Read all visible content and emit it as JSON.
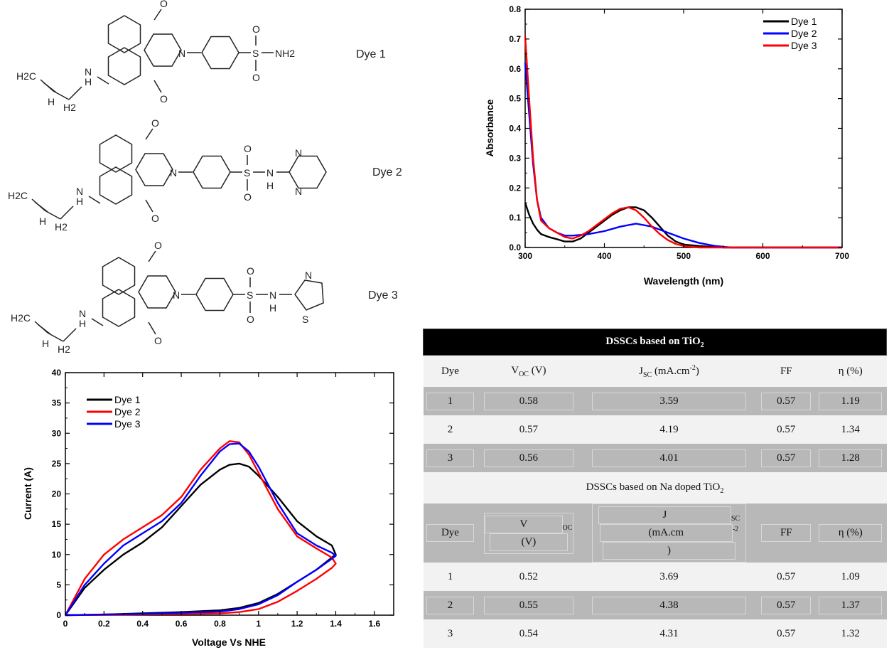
{
  "structures": {
    "labels": [
      "Dye 1",
      "Dye 2",
      "Dye 3"
    ],
    "groups": {
      "h2c": "H2C",
      "h": "H",
      "h2": "H2",
      "n": "N",
      "nh_n": "N",
      "nh_h": "H",
      "o": "O",
      "s": "S",
      "nh2": "NH2",
      "h_sub": "H",
      "n_ring": "N",
      "s_ring": "S"
    }
  },
  "absorbance_chart": {
    "chart_data": {
      "type": "line",
      "xlabel": "Wavelength (nm)",
      "ylabel": "Absorbance",
      "xlim": [
        300,
        700
      ],
      "ylim": [
        0.0,
        0.8
      ],
      "xticks": [
        300,
        400,
        500,
        600,
        700
      ],
      "yticks": [
        0.0,
        0.1,
        0.2,
        0.3,
        0.4,
        0.5,
        0.6,
        0.7,
        0.8
      ],
      "legend_position": "top-right",
      "series": [
        {
          "name": "Dye 1",
          "color": "#000000",
          "x": [
            300,
            305,
            310,
            315,
            320,
            330,
            340,
            350,
            360,
            370,
            380,
            390,
            400,
            410,
            420,
            430,
            440,
            450,
            460,
            470,
            480,
            490,
            500,
            520,
            550,
            600,
            650,
            700
          ],
          "y": [
            0.15,
            0.11,
            0.08,
            0.06,
            0.045,
            0.035,
            0.028,
            0.02,
            0.02,
            0.03,
            0.05,
            0.07,
            0.09,
            0.11,
            0.125,
            0.135,
            0.135,
            0.125,
            0.1,
            0.07,
            0.04,
            0.02,
            0.01,
            0.005,
            0.0,
            0.0,
            0.0,
            0.0
          ]
        },
        {
          "name": "Dye 2",
          "color": "#0000ff",
          "x": [
            300,
            305,
            310,
            315,
            320,
            330,
            340,
            350,
            360,
            380,
            400,
            420,
            440,
            460,
            480,
            500,
            520,
            540,
            560,
            600,
            650,
            700
          ],
          "y": [
            0.62,
            0.45,
            0.28,
            0.16,
            0.1,
            0.065,
            0.05,
            0.04,
            0.04,
            0.045,
            0.055,
            0.07,
            0.08,
            0.07,
            0.05,
            0.03,
            0.015,
            0.005,
            0.0,
            0.0,
            0.0,
            0.0
          ]
        },
        {
          "name": "Dye 3",
          "color": "#ff0000",
          "x": [
            300,
            305,
            310,
            315,
            320,
            330,
            340,
            350,
            360,
            370,
            380,
            390,
            400,
            410,
            420,
            430,
            440,
            450,
            460,
            470,
            480,
            490,
            500,
            520,
            550,
            600,
            650,
            700
          ],
          "y": [
            0.71,
            0.5,
            0.3,
            0.16,
            0.09,
            0.065,
            0.05,
            0.035,
            0.03,
            0.04,
            0.055,
            0.075,
            0.095,
            0.115,
            0.13,
            0.135,
            0.125,
            0.1,
            0.07,
            0.045,
            0.025,
            0.012,
            0.005,
            0.0,
            0.0,
            0.0,
            0.0,
            0.0
          ]
        }
      ]
    }
  },
  "cv_chart": {
    "chart_data": {
      "type": "line",
      "xlabel": "Voltage Vs NHE",
      "ylabel": "Current (A)",
      "xlim": [
        0.0,
        1.7
      ],
      "ylim": [
        0,
        40
      ],
      "xticks": [
        0.0,
        0.2,
        0.4,
        0.6,
        0.8,
        1.0,
        1.2,
        1.4,
        1.6
      ],
      "yticks": [
        0,
        5,
        10,
        15,
        20,
        25,
        30,
        35,
        40
      ],
      "legend_position": "top-left",
      "series": [
        {
          "name": "Dye 1",
          "color": "#000000",
          "x": [
            0.0,
            0.1,
            0.2,
            0.3,
            0.4,
            0.5,
            0.6,
            0.7,
            0.8,
            0.85,
            0.9,
            0.95,
            1.0,
            1.1,
            1.2,
            1.3,
            1.38,
            1.4,
            1.38,
            1.3,
            1.2,
            1.1,
            1.0,
            0.9,
            0.8,
            0.6,
            0.4,
            0.2,
            0.0
          ],
          "y": [
            0.0,
            4.5,
            7.5,
            10.0,
            12.0,
            14.5,
            18.0,
            21.5,
            24.0,
            24.8,
            25.0,
            24.5,
            23.0,
            19.5,
            15.5,
            13.0,
            11.5,
            10.0,
            9.5,
            7.5,
            5.5,
            3.5,
            2.0,
            1.2,
            0.8,
            0.5,
            0.3,
            0.1,
            0.0
          ]
        },
        {
          "name": "Dye 2",
          "color": "#ff0000",
          "x": [
            0.0,
            0.1,
            0.2,
            0.3,
            0.4,
            0.5,
            0.6,
            0.7,
            0.8,
            0.85,
            0.9,
            0.95,
            1.0,
            1.1,
            1.2,
            1.3,
            1.38,
            1.4,
            1.38,
            1.3,
            1.2,
            1.1,
            1.0,
            0.9,
            0.8,
            0.6,
            0.4,
            0.2,
            0.0
          ],
          "y": [
            0.0,
            6.0,
            10.0,
            12.5,
            14.5,
            16.5,
            19.5,
            24.0,
            27.5,
            28.7,
            28.5,
            26.5,
            23.5,
            17.5,
            13.0,
            11.0,
            9.5,
            8.5,
            7.8,
            6.0,
            4.0,
            2.2,
            1.0,
            0.5,
            0.3,
            0.2,
            0.1,
            0.05,
            0.0
          ]
        },
        {
          "name": "Dye 3",
          "color": "#0000ff",
          "x": [
            0.0,
            0.1,
            0.2,
            0.3,
            0.4,
            0.5,
            0.6,
            0.7,
            0.8,
            0.85,
            0.9,
            0.95,
            1.0,
            1.1,
            1.2,
            1.3,
            1.38,
            1.4,
            1.38,
            1.3,
            1.2,
            1.1,
            1.0,
            0.9,
            0.8,
            0.6,
            0.4,
            0.2,
            0.0
          ],
          "y": [
            0.0,
            5.0,
            8.5,
            11.5,
            13.5,
            15.5,
            18.5,
            23.0,
            27.0,
            28.2,
            28.3,
            27.0,
            24.5,
            18.5,
            13.5,
            11.5,
            10.3,
            9.8,
            9.3,
            7.5,
            5.5,
            3.3,
            1.8,
            1.0,
            0.6,
            0.4,
            0.2,
            0.1,
            0.0
          ]
        }
      ]
    }
  },
  "table": {
    "chart_data": {
      "type": "table",
      "section1_title": "DSSCs based on TiO",
      "section1_title_sub": "2",
      "section2_title": "DSSCs based on Na doped TiO",
      "section2_title_sub": "2",
      "headers": {
        "dye": "Dye",
        "voc": "V",
        "voc_sub": "OC",
        "voc_unit": " (V)",
        "jsc": "J",
        "jsc_sub": "SC",
        "jsc_unit": " (mA.cm",
        "jsc_sup": "-2",
        "jsc_close": ")",
        "ff": "FF",
        "eta": "η (%)"
      },
      "section1_rows": [
        [
          "1",
          "0.58",
          "3.59",
          "0.57",
          "1.19"
        ],
        [
          "2",
          "0.57",
          "4.19",
          "0.57",
          "1.34"
        ],
        [
          "3",
          "0.56",
          "4.01",
          "0.57",
          "1.28"
        ]
      ],
      "section2_rows": [
        [
          "1",
          "0.52",
          "3.69",
          "0.57",
          "1.09"
        ],
        [
          "2",
          "0.55",
          "4.38",
          "0.57",
          "1.37"
        ],
        [
          "3",
          "0.54",
          "4.31",
          "0.57",
          "1.32"
        ]
      ]
    }
  }
}
